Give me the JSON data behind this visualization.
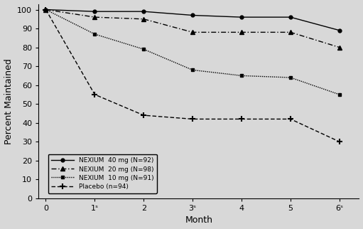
{
  "title": "",
  "xlabel": "Month",
  "ylabel": "Percent Maintained",
  "months": [
    0,
    1,
    2,
    3,
    4,
    5,
    6
  ],
  "nexium40": [
    100,
    99,
    99,
    97,
    96,
    96,
    89
  ],
  "nexium20": [
    100,
    96,
    95,
    88,
    88,
    88,
    80
  ],
  "nexium10": [
    100,
    87,
    79,
    68,
    65,
    64,
    55
  ],
  "placebo": [
    100,
    55,
    44,
    42,
    42,
    42,
    30
  ],
  "xtick_labels": [
    "0",
    "1ˢ",
    "2",
    "3ˢ",
    "4",
    "5",
    "6ˢ"
  ],
  "yticks": [
    0,
    10,
    20,
    30,
    40,
    50,
    60,
    70,
    80,
    90,
    100
  ],
  "ylim": [
    0,
    103
  ],
  "xlim": [
    -0.15,
    6.4
  ],
  "legend_labels": [
    "NEXIUM  40 mg (N=92)",
    "NEXIUM  20 mg (N=98)",
    "NEXIUM  10 mg (N=91)",
    "Placebo (n=94)"
  ],
  "color": "#000000",
  "bg_color": "#d8d8d8",
  "plot_bg": "#d8d8d8"
}
